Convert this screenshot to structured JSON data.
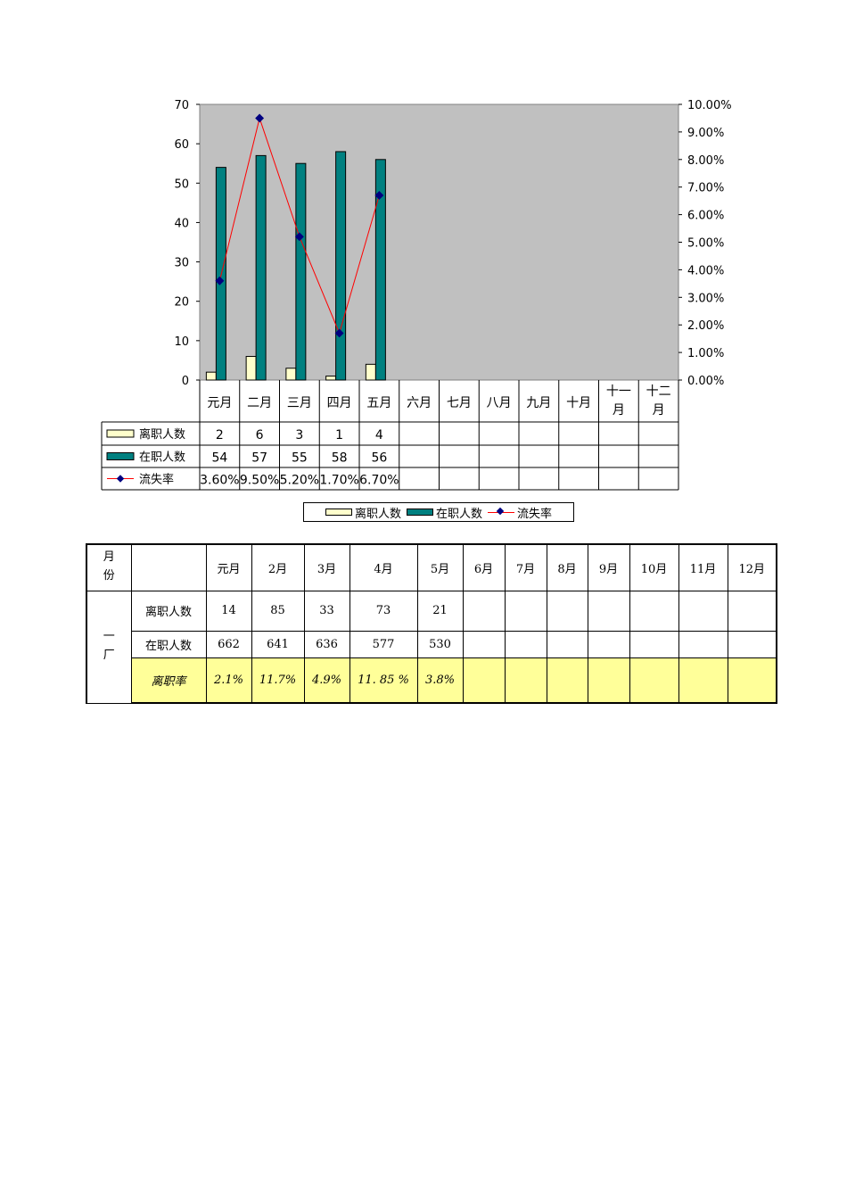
{
  "chart_data": {
    "type": "bar",
    "categories": [
      "元月",
      "二月",
      "三月",
      "四月",
      "五月",
      "六月",
      "七月",
      "八月",
      "九月",
      "十月",
      "十一月",
      "十二月"
    ],
    "series": [
      {
        "name": "离职人数",
        "type": "bar",
        "color": "#ffffcc",
        "values": [
          2,
          6,
          3,
          1,
          4,
          null,
          null,
          null,
          null,
          null,
          null,
          null
        ]
      },
      {
        "name": "在职人数",
        "type": "bar",
        "color": "#008080",
        "values": [
          54,
          57,
          55,
          58,
          56,
          null,
          null,
          null,
          null,
          null,
          null,
          null
        ]
      },
      {
        "name": "流失率",
        "type": "line",
        "axis": "right",
        "color": "#ff0000",
        "marker_color": "#000080",
        "values": [
          3.6,
          9.5,
          5.2,
          1.7,
          6.7,
          null,
          null,
          null,
          null,
          null,
          null,
          null
        ],
        "labels": [
          "3.60%",
          "9.50%",
          "5.20%",
          "1.70%",
          "6.70%",
          "",
          "",
          "",
          "",
          "",
          "",
          ""
        ]
      }
    ],
    "ylim": [
      0,
      70
    ],
    "yticks": [
      0,
      10,
      20,
      30,
      40,
      50,
      60,
      70
    ],
    "y2lim": [
      0,
      10
    ],
    "y2ticks": [
      "0.00%",
      "1.00%",
      "2.00%",
      "3.00%",
      "4.00%",
      "5.00%",
      "6.00%",
      "7.00%",
      "8.00%",
      "9.00%",
      "10.00%"
    ],
    "plot_background": "#c0c0c0",
    "data_table": true,
    "legend_position": "bottom"
  },
  "legend": {
    "left_label": "离职人数",
    "staff_label": "在职人数",
    "rate_label": "流失率"
  },
  "table": {
    "corner_label": "月份",
    "months": [
      "元月",
      "2月",
      "3月",
      "4月",
      "5月",
      "6月",
      "7月",
      "8月",
      "9月",
      "10月",
      "11月",
      "12月"
    ],
    "factory": "一厂",
    "rows": [
      {
        "label": "离职人数",
        "values": [
          "14",
          "85",
          "33",
          "73",
          "21",
          "",
          "",
          "",
          "",
          "",
          "",
          ""
        ]
      },
      {
        "label": "在职人数",
        "values": [
          "662",
          "641",
          "636",
          "577",
          "530",
          "",
          "",
          "",
          "",
          "",
          "",
          ""
        ]
      },
      {
        "label": "离职率",
        "values": [
          "2.1%",
          "11.7%",
          "4.9%",
          "11. 85 %",
          "3.8%",
          "",
          "",
          "",
          "",
          "",
          "",
          ""
        ]
      }
    ]
  }
}
